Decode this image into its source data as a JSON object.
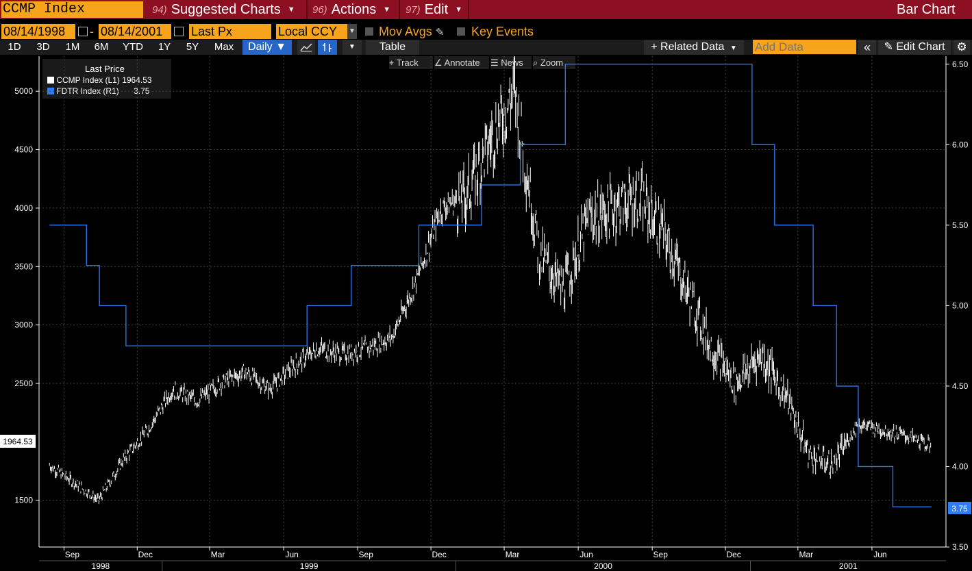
{
  "header": {
    "ticker": "CCMP Index",
    "menus": [
      {
        "num": "94)",
        "label": "Suggested Charts"
      },
      {
        "num": "96)",
        "label": "Actions"
      },
      {
        "num": "97)",
        "label": "Edit"
      }
    ],
    "chart_type": "Bar Chart"
  },
  "controls": {
    "start_date": "08/14/1998",
    "date_sep": "-",
    "end_date": "08/14/2001",
    "field": "Last Px",
    "currency": "Local CCY",
    "mov_avgs": "Mov Avgs",
    "key_events": "Key Events"
  },
  "periods": [
    "1D",
    "3D",
    "1M",
    "6M",
    "YTD",
    "1Y",
    "5Y",
    "Max"
  ],
  "frequency": "Daily ▼",
  "table_label": "Table",
  "related_data": "+ Related Data",
  "add_data_placeholder": "Add Data",
  "edit_chart": "Edit Chart",
  "tools": {
    "track": "Track",
    "annotate": "Annotate",
    "news": "News",
    "zoom": "Zoom"
  },
  "legend": {
    "title": "Last Price",
    "items": [
      {
        "name": "CCMP Index",
        "axis": "(L1)",
        "value": "1964.53",
        "color": "#ffffff"
      },
      {
        "name": "FDTR Index",
        "axis": "(R1)",
        "value": "3.75",
        "color": "#2e7cf6"
      }
    ]
  },
  "chart_data": {
    "type": "bar",
    "left_axis": {
      "ticks": [
        "5000",
        "4500",
        "4000",
        "3500",
        "3000",
        "2500",
        "1500"
      ],
      "last_value": "1964.53",
      "range": [
        1100,
        5300
      ]
    },
    "right_axis": {
      "ticks": [
        "6.50",
        "6.00",
        "5.50",
        "5.00",
        "4.50",
        "4.00",
        "3.50"
      ],
      "last_value": "3.75",
      "range": [
        3.5,
        6.55
      ]
    },
    "x_months": [
      "Sep",
      "Dec",
      "Mar",
      "Jun",
      "Sep",
      "Dec",
      "Mar",
      "Jun",
      "Sep",
      "Dec",
      "Mar",
      "Jun"
    ],
    "x_years": [
      "1998",
      "1999",
      "2000",
      "2001"
    ],
    "ccmp_series": [
      {
        "date": "1998-08",
        "value": 1800
      },
      {
        "date": "1998-09",
        "value": 1650
      },
      {
        "date": "1998-10",
        "value": 1500
      },
      {
        "date": "1998-11",
        "value": 1850
      },
      {
        "date": "1998-12",
        "value": 2100
      },
      {
        "date": "1999-01",
        "value": 2450
      },
      {
        "date": "1999-02",
        "value": 2350
      },
      {
        "date": "1999-03",
        "value": 2500
      },
      {
        "date": "1999-04",
        "value": 2600
      },
      {
        "date": "1999-05",
        "value": 2450
      },
      {
        "date": "1999-06",
        "value": 2650
      },
      {
        "date": "1999-07",
        "value": 2800
      },
      {
        "date": "1999-08",
        "value": 2750
      },
      {
        "date": "1999-09",
        "value": 2800
      },
      {
        "date": "1999-10",
        "value": 2900
      },
      {
        "date": "1999-11",
        "value": 3400
      },
      {
        "date": "1999-12",
        "value": 4000
      },
      {
        "date": "2000-01",
        "value": 4100
      },
      {
        "date": "2000-02",
        "value": 4600
      },
      {
        "date": "2000-03",
        "value": 5000
      },
      {
        "date": "2000-04",
        "value": 3600
      },
      {
        "date": "2000-05",
        "value": 3300
      },
      {
        "date": "2000-06",
        "value": 3900
      },
      {
        "date": "2000-07",
        "value": 4000
      },
      {
        "date": "2000-08",
        "value": 4100
      },
      {
        "date": "2000-09",
        "value": 3800
      },
      {
        "date": "2000-10",
        "value": 3300
      },
      {
        "date": "2000-11",
        "value": 2800
      },
      {
        "date": "2000-12",
        "value": 2500
      },
      {
        "date": "2001-01",
        "value": 2750
      },
      {
        "date": "2001-02",
        "value": 2400
      },
      {
        "date": "2001-03",
        "value": 1900
      },
      {
        "date": "2001-04",
        "value": 1800
      },
      {
        "date": "2001-05",
        "value": 2150
      },
      {
        "date": "2001-06",
        "value": 2100
      },
      {
        "date": "2001-07",
        "value": 2050
      },
      {
        "date": "2001-08",
        "value": 1964.53
      }
    ],
    "fdtr_series": [
      {
        "date": "1998-08-14",
        "value": 5.5
      },
      {
        "date": "1998-09-29",
        "value": 5.25
      },
      {
        "date": "1998-10-15",
        "value": 5.0
      },
      {
        "date": "1998-11-17",
        "value": 4.75
      },
      {
        "date": "1999-06-30",
        "value": 5.0
      },
      {
        "date": "1999-08-24",
        "value": 5.25
      },
      {
        "date": "1999-11-16",
        "value": 5.5
      },
      {
        "date": "2000-02-02",
        "value": 5.75
      },
      {
        "date": "2000-03-21",
        "value": 6.0
      },
      {
        "date": "2000-05-16",
        "value": 6.5
      },
      {
        "date": "2001-01-03",
        "value": 6.0
      },
      {
        "date": "2001-01-31",
        "value": 5.5
      },
      {
        "date": "2001-03-20",
        "value": 5.0
      },
      {
        "date": "2001-04-18",
        "value": 4.5
      },
      {
        "date": "2001-05-15",
        "value": 4.0
      },
      {
        "date": "2001-06-27",
        "value": 3.75
      },
      {
        "date": "2001-08-14",
        "value": 3.75
      }
    ]
  }
}
